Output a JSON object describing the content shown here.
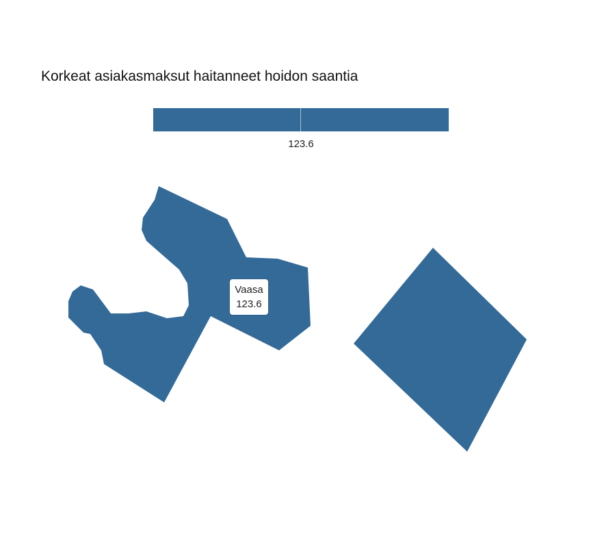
{
  "title": "Korkeat asiakasmaksut haitanneet hoidon saantia",
  "legend": {
    "value_label": "123.6",
    "color": "#336a98"
  },
  "map": {
    "fill_color": "#336a98",
    "regions": [
      {
        "name": "Vaasa",
        "value": 123.6
      },
      {
        "name": "",
        "value": 123.6
      }
    ]
  },
  "tooltip": {
    "region": "Vaasa",
    "value": "123.6"
  }
}
